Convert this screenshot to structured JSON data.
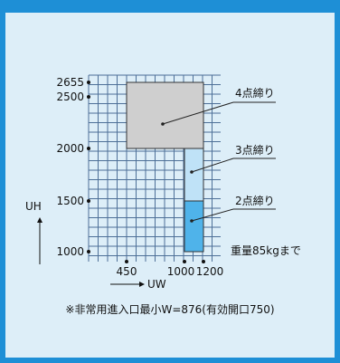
{
  "colors": {
    "border": "#1e8fd6",
    "background": "#ddeef8",
    "grid_line": "#4d6f97",
    "region_4": "#cfcfcf",
    "region_3": "#bfe2f7",
    "region_2": "#4fb3ea"
  },
  "axes": {
    "x_label": "UW",
    "y_label": "UH",
    "x_ticks": [
      "450",
      "1000",
      "1200"
    ],
    "y_ticks": [
      "2655",
      "2500",
      "2000",
      "1500",
      "1000"
    ]
  },
  "regions": [
    {
      "label": "4点締り"
    },
    {
      "label": "3点締り"
    },
    {
      "label": "2点締り"
    }
  ],
  "weight_note": "重量85kgまで",
  "footnote": "※非常用進入口最小W=876(有効開口750)"
}
